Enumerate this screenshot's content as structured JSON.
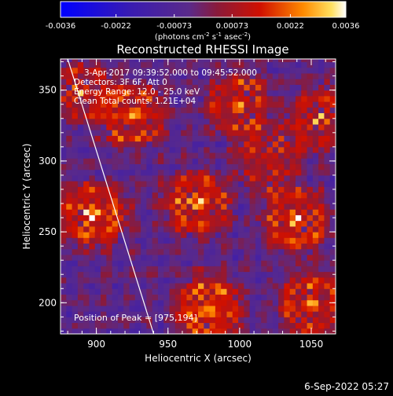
{
  "colorbar": {
    "tick_labels": [
      "-0.0036",
      "-0.0022",
      "-0.00073",
      "0.00073",
      "0.0022",
      "0.0036"
    ],
    "tick_values": [
      -0.0036,
      -0.0022,
      -0.00073,
      0.00073,
      0.0022,
      0.0036
    ],
    "range": [
      -0.0036,
      0.0036
    ],
    "units_prefix": "(photons cm",
    "units_exp1": "-2",
    "units_mid": " s",
    "units_exp2": "-1",
    "units_mid2": " asec",
    "units_exp3": "-2",
    "units_suffix": ")"
  },
  "chart_data": {
    "type": "heatmap",
    "title": "Reconstructed RHESSI Image",
    "xlabel": "Heliocentric X (arcsec)",
    "ylabel": "Heliocentric Y (arcsec)",
    "xlim": [
      875,
      1067
    ],
    "ylim": [
      178,
      372
    ],
    "x_ticks": [
      900,
      950,
      1000,
      1050
    ],
    "y_ticks": [
      200,
      250,
      300,
      350
    ],
    "x_tick_labels": [
      "900",
      "950",
      "1000",
      "1050"
    ],
    "y_tick_labels": [
      "200",
      "250",
      "300",
      "350"
    ],
    "colormap": "blue-purple-red-yellow-white",
    "annotations": [
      "3-Apr-2017 09:39:52.000 to 09:45:52.000",
      "Detectors: 3F 6F, Att 0",
      "Energy Range: 12.0 - 25.0 keV",
      "Clean     Total counts: 1.21E+04"
    ],
    "peak_label": "Position of Peak = [975,194]",
    "peak_position": [
      975,
      194
    ],
    "limb_line": [
      [
        880,
        372
      ],
      [
        940,
        178
      ]
    ],
    "sources": [
      {
        "x": 898,
        "y": 262,
        "intensity": 0.0034
      },
      {
        "x": 925,
        "y": 332,
        "intensity": 0.003
      },
      {
        "x": 970,
        "y": 270,
        "intensity": 0.0032
      },
      {
        "x": 978,
        "y": 196,
        "intensity": 0.0036
      },
      {
        "x": 1040,
        "y": 258,
        "intensity": 0.0031
      },
      {
        "x": 1050,
        "y": 200,
        "intensity": 0.003
      },
      {
        "x": 1000,
        "y": 340,
        "intensity": 0.0027
      },
      {
        "x": 1055,
        "y": 330,
        "intensity": 0.0025
      },
      {
        "x": 890,
        "y": 350,
        "intensity": 0.0024
      },
      {
        "x": 1020,
        "y": 300,
        "intensity": 0.0022
      }
    ]
  },
  "footer": {
    "timestamp": "6-Sep-2022 05:27"
  }
}
